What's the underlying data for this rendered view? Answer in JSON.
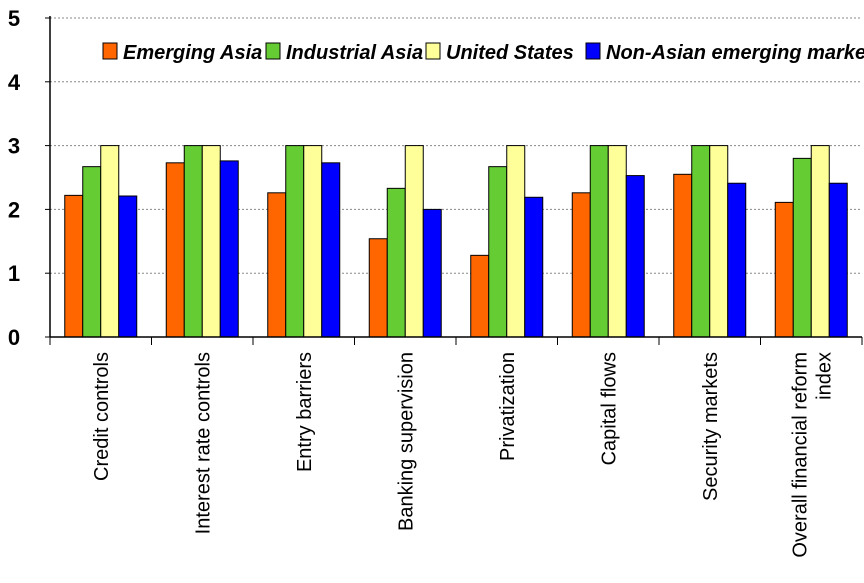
{
  "chart_data": {
    "type": "bar",
    "title": "",
    "xlabel": "",
    "ylabel": "",
    "ylim": [
      0,
      5
    ],
    "yticks": [
      0,
      1,
      2,
      3,
      4,
      5
    ],
    "grid": "horizontal dashed",
    "legend_position": "top-right",
    "categories": [
      [
        "Credit controls"
      ],
      [
        "Interest rate controls"
      ],
      [
        "Entry barriers"
      ],
      [
        "Banking supervision"
      ],
      [
        "Privatization"
      ],
      [
        "Capital flows"
      ],
      [
        "Security markets"
      ],
      [
        "Overall financial reform",
        "index"
      ]
    ],
    "series": [
      {
        "name": "Emerging Asia",
        "color": "#ff6600",
        "values": [
          2.22,
          2.73,
          2.26,
          1.54,
          1.28,
          2.26,
          2.55,
          2.11
        ]
      },
      {
        "name": "Industrial Asia",
        "color": "#66cc33",
        "values": [
          2.67,
          3.0,
          3.0,
          2.33,
          2.67,
          3.0,
          3.0,
          2.8
        ]
      },
      {
        "name": "United States",
        "color": "#ffff99",
        "values": [
          3.0,
          3.0,
          3.0,
          3.0,
          3.0,
          3.0,
          3.0,
          3.0
        ]
      },
      {
        "name": "Non-Asian emerging markets",
        "color": "#0000ff",
        "values": [
          2.21,
          2.76,
          2.73,
          2.0,
          2.19,
          2.53,
          2.41,
          2.41
        ]
      }
    ]
  }
}
